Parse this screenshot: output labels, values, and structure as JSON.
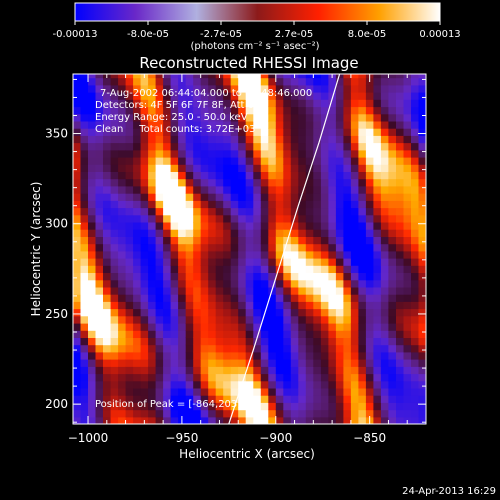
{
  "chart_data": {
    "type": "heatmap",
    "title": "Reconstructed RHESSI Image",
    "xlabel": "Heliocentric X (arcsec)",
    "ylabel": "Heliocentric Y (arcsec)",
    "xlim": [
      -1008,
      -820
    ],
    "ylim": [
      189,
      383
    ],
    "xticks": [
      -1000,
      -950,
      -900,
      -850
    ],
    "yticks": [
      200,
      250,
      300,
      350
    ],
    "colorbar": {
      "unit_label": "(photons cm⁻² s⁻¹ asec⁻²)",
      "ticks": [
        "-0.00013",
        "-8.0e-05",
        "-2.7e-05",
        "2.7e-05",
        "8.0e-05",
        "0.00013"
      ],
      "range": [
        -0.00013,
        0.00013
      ],
      "colors": [
        "#0000ff",
        "#6a28c8",
        "#b0b0e0",
        "#8c1a1a",
        "#ff2000",
        "#ffa000",
        "#ffffff"
      ]
    },
    "annotations": [
      "7-Aug-2002 06:44:04.000 to 06:48:46.000",
      "Detectors: 4F 5F 6F 7F 8F, Att 0",
      "Energy Range: 25.0 - 50.0 keV",
      "Clean     Total counts: 3.72E+03",
      "Position of Peak = [-864,203]"
    ],
    "peak": [
      -864,
      203
    ],
    "limb_curve": [
      [
        -925,
        189
      ],
      [
        -912,
        230
      ],
      [
        -900,
        270
      ],
      [
        -888,
        310
      ],
      [
        -877,
        345
      ],
      [
        -866,
        383
      ]
    ]
  },
  "footer": {
    "timestamp": "24-Apr-2013 16:29"
  }
}
